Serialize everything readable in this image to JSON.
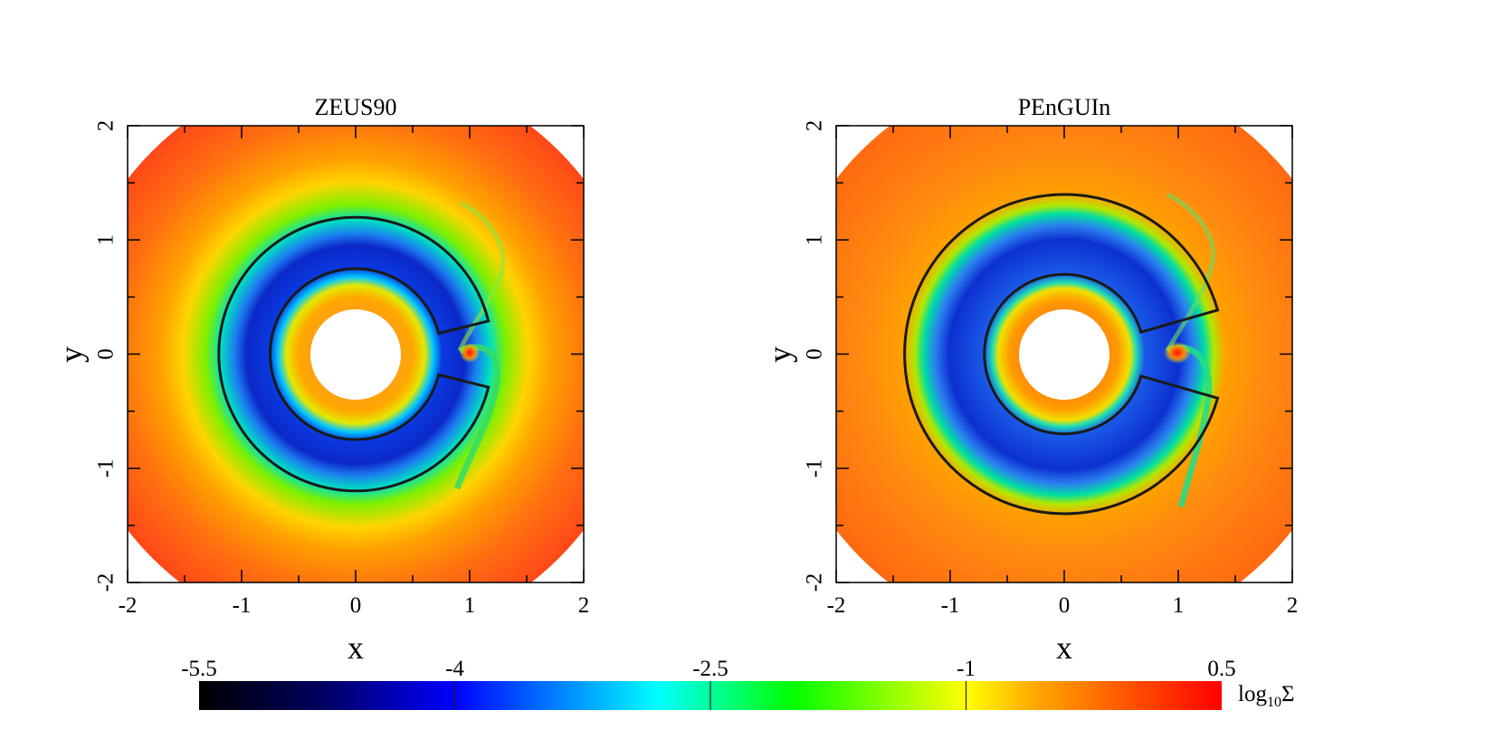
{
  "chart_data": [
    {
      "type": "heatmap",
      "title": "ZEUS90",
      "xlabel": "x",
      "ylabel": "y",
      "xlim": [
        -2,
        2
      ],
      "ylim": [
        -2,
        2
      ],
      "x_ticks": [
        "-2",
        "-1",
        "0",
        "1",
        "2"
      ],
      "y_ticks": [
        "-2",
        "-1",
        "0",
        "1",
        "2"
      ],
      "grid": false,
      "field": "surface density, log10 Σ",
      "annulus_marker": {
        "inner_radius": 0.75,
        "outer_radius": 1.2,
        "gap_angle_deg": [
          -14,
          14
        ]
      },
      "cavity_radius": 0.4,
      "planet_position": [
        1,
        0
      ]
    },
    {
      "type": "heatmap",
      "title": "PEnGUIn",
      "xlabel": "x",
      "ylabel": "y",
      "xlim": [
        -2,
        2
      ],
      "ylim": [
        -2,
        2
      ],
      "x_ticks": [
        "-2",
        "-1",
        "0",
        "1",
        "2"
      ],
      "y_ticks": [
        "-2",
        "-1",
        "0",
        "1",
        "2"
      ],
      "grid": false,
      "field": "surface density, log10 Σ",
      "annulus_marker": {
        "inner_radius": 0.7,
        "outer_radius": 1.4,
        "gap_angle_deg": [
          -16,
          16
        ]
      },
      "cavity_radius": 0.4,
      "planet_position": [
        1,
        0
      ]
    }
  ],
  "colorbar": {
    "label_main": "log",
    "label_sub": "10",
    "label_symbol": "Σ",
    "tick_labels": [
      "-5.5",
      "-4",
      "-2.5",
      "-1",
      "0.5"
    ],
    "tick_values": [
      -5.5,
      -4,
      -2.5,
      -1,
      0.5
    ],
    "range": [
      -5.5,
      0.5
    ],
    "colors": [
      "#000000",
      "#000060",
      "#0000ff",
      "#00ffff",
      "#00ff00",
      "#ffff00",
      "#ffa500",
      "#ff0000"
    ]
  }
}
